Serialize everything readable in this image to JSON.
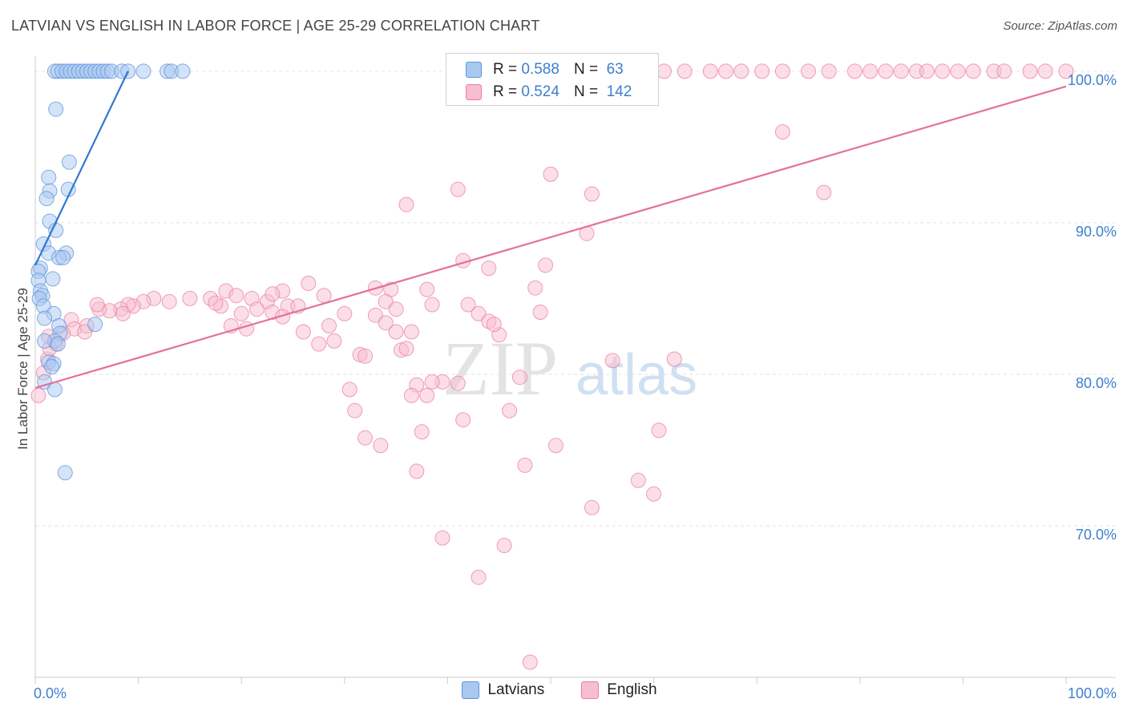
{
  "title": "LATVIAN VS ENGLISH IN LABOR FORCE | AGE 25-29 CORRELATION CHART",
  "source": "Source: ZipAtlas.com",
  "watermark": {
    "zip": "ZIP",
    "atlas": "atlas"
  },
  "legend": {
    "rows": [
      {
        "r_label": "R =",
        "r_value": "0.588",
        "n_label": "N =",
        "n_value": "63",
        "color": "#a9c8f0",
        "border": "#5b93dd"
      },
      {
        "r_label": "R =",
        "r_value": "0.524",
        "n_label": "N =",
        "n_value": "142",
        "color": "#f7bdd0",
        "border": "#e97fa5"
      }
    ]
  },
  "bottom_legend": [
    {
      "label": "Latvians",
      "color": "#a9c8f0",
      "border": "#5b93dd"
    },
    {
      "label": "English",
      "color": "#f7bdd0",
      "border": "#e97fa5"
    }
  ],
  "chart_data": {
    "type": "scatter",
    "xlabel": "",
    "ylabel": "In Labor Force | Age 25-29",
    "xlim": [
      0,
      100
    ],
    "ylim": [
      60,
      101
    ],
    "x_tick_labels": [
      "0.0%",
      "100.0%"
    ],
    "y_ticks": [
      {
        "value": 70,
        "label": "70.0%"
      },
      {
        "value": 80,
        "label": "80.0%"
      },
      {
        "value": 90,
        "label": "90.0%"
      },
      {
        "value": 100,
        "label": "100.0%"
      }
    ],
    "grid": true,
    "series": [
      {
        "name": "Latvians",
        "color": "#5b93dd",
        "fill": "#a9c8f0",
        "trendline": {
          "x": [
            0,
            9
          ],
          "y": [
            87.2,
            100
          ]
        },
        "points": [
          [
            1.9,
            100
          ],
          [
            2.2,
            100
          ],
          [
            2.6,
            100
          ],
          [
            3.0,
            100
          ],
          [
            3.4,
            100
          ],
          [
            3.8,
            100
          ],
          [
            4.2,
            100
          ],
          [
            4.6,
            100
          ],
          [
            5.0,
            100
          ],
          [
            5.4,
            100
          ],
          [
            5.8,
            100
          ],
          [
            6.2,
            100
          ],
          [
            6.6,
            100
          ],
          [
            7.0,
            100
          ],
          [
            7.4,
            100
          ],
          [
            8.4,
            100
          ],
          [
            9.0,
            100
          ],
          [
            10.5,
            100
          ],
          [
            12.8,
            100
          ],
          [
            13.2,
            100
          ],
          [
            14.3,
            100
          ],
          [
            2.0,
            97.5
          ],
          [
            3.3,
            94.0
          ],
          [
            1.3,
            93.0
          ],
          [
            3.2,
            92.2
          ],
          [
            1.4,
            92.1
          ],
          [
            1.1,
            91.6
          ],
          [
            1.4,
            90.1
          ],
          [
            2.0,
            89.5
          ],
          [
            0.8,
            88.6
          ],
          [
            1.3,
            88.0
          ],
          [
            3.0,
            88.0
          ],
          [
            2.3,
            87.7
          ],
          [
            2.7,
            87.7
          ],
          [
            0.5,
            87.0
          ],
          [
            0.3,
            86.8
          ],
          [
            1.7,
            86.3
          ],
          [
            0.3,
            86.2
          ],
          [
            0.5,
            85.5
          ],
          [
            0.7,
            85.2
          ],
          [
            0.4,
            85.0
          ],
          [
            0.8,
            84.5
          ],
          [
            1.8,
            84.0
          ],
          [
            0.9,
            83.7
          ],
          [
            5.8,
            83.3
          ],
          [
            2.3,
            83.2
          ],
          [
            2.4,
            82.7
          ],
          [
            1.9,
            82.2
          ],
          [
            0.9,
            82.2
          ],
          [
            2.2,
            82.0
          ],
          [
            1.3,
            80.8
          ],
          [
            1.8,
            80.7
          ],
          [
            1.6,
            80.5
          ],
          [
            0.9,
            79.5
          ],
          [
            1.9,
            79.0
          ],
          [
            2.9,
            73.5
          ]
        ]
      },
      {
        "name": "English",
        "color": "#e97fa5",
        "fill": "#f7bdd0",
        "trendline": {
          "x": [
            0,
            100
          ],
          "y": [
            79.1,
            99.0
          ]
        },
        "points": [
          [
            48.0,
            100
          ],
          [
            52.0,
            100
          ],
          [
            54.5,
            100
          ],
          [
            57.0,
            100
          ],
          [
            59.5,
            100
          ],
          [
            61.0,
            100
          ],
          [
            63.0,
            100
          ],
          [
            65.5,
            100
          ],
          [
            67.0,
            100
          ],
          [
            68.5,
            100
          ],
          [
            70.5,
            100
          ],
          [
            72.5,
            100
          ],
          [
            75.0,
            100
          ],
          [
            77.0,
            100
          ],
          [
            79.5,
            100
          ],
          [
            81.0,
            100
          ],
          [
            82.5,
            100
          ],
          [
            84.0,
            100
          ],
          [
            85.5,
            100
          ],
          [
            86.5,
            100
          ],
          [
            88.0,
            100
          ],
          [
            89.5,
            100
          ],
          [
            91.0,
            100
          ],
          [
            93.0,
            100
          ],
          [
            94.0,
            100
          ],
          [
            96.5,
            100
          ],
          [
            98.0,
            100
          ],
          [
            100.0,
            100
          ],
          [
            72.5,
            96.0
          ],
          [
            50.0,
            93.2
          ],
          [
            41.0,
            92.2
          ],
          [
            54.0,
            91.9
          ],
          [
            76.5,
            92.0
          ],
          [
            36.0,
            91.2
          ],
          [
            53.5,
            89.3
          ],
          [
            41.5,
            87.5
          ],
          [
            49.5,
            87.2
          ],
          [
            44.0,
            87.0
          ],
          [
            26.5,
            86.0
          ],
          [
            33.0,
            85.7
          ],
          [
            48.5,
            85.7
          ],
          [
            24.0,
            85.5
          ],
          [
            38.0,
            85.6
          ],
          [
            34.5,
            85.6
          ],
          [
            28.0,
            85.2
          ],
          [
            34.0,
            84.8
          ],
          [
            15.0,
            85.0
          ],
          [
            11.5,
            85.0
          ],
          [
            13.0,
            84.8
          ],
          [
            18.0,
            84.5
          ],
          [
            17.0,
            85.0
          ],
          [
            18.5,
            85.5
          ],
          [
            19.5,
            85.2
          ],
          [
            21.0,
            85.0
          ],
          [
            22.5,
            84.8
          ],
          [
            23.0,
            85.3
          ],
          [
            24.5,
            84.5
          ],
          [
            17.5,
            84.7
          ],
          [
            10.5,
            84.8
          ],
          [
            9.5,
            84.5
          ],
          [
            9.0,
            84.6
          ],
          [
            8.3,
            84.3
          ],
          [
            8.5,
            84.0
          ],
          [
            7.2,
            84.2
          ],
          [
            6.2,
            84.3
          ],
          [
            6.0,
            84.6
          ],
          [
            3.5,
            83.6
          ],
          [
            3.8,
            83.0
          ],
          [
            5.0,
            83.2
          ],
          [
            4.8,
            82.8
          ],
          [
            2.7,
            82.7
          ],
          [
            2.0,
            82.0
          ],
          [
            1.3,
            82.5
          ],
          [
            1.2,
            81.0
          ],
          [
            1.4,
            81.7
          ],
          [
            0.8,
            80.1
          ],
          [
            0.3,
            78.6
          ],
          [
            20.0,
            84.0
          ],
          [
            19.0,
            83.2
          ],
          [
            20.5,
            83.0
          ],
          [
            21.5,
            84.3
          ],
          [
            23.0,
            84.1
          ],
          [
            24.0,
            83.8
          ],
          [
            25.5,
            84.5
          ],
          [
            26.0,
            82.8
          ],
          [
            27.5,
            82.0
          ],
          [
            28.5,
            83.2
          ],
          [
            29.0,
            82.2
          ],
          [
            30.0,
            84.0
          ],
          [
            31.5,
            81.3
          ],
          [
            32.0,
            81.2
          ],
          [
            33.0,
            83.9
          ],
          [
            34.0,
            83.4
          ],
          [
            35.0,
            82.8
          ],
          [
            35.5,
            81.6
          ],
          [
            36.5,
            82.8
          ],
          [
            35.0,
            84.3
          ],
          [
            36.0,
            81.7
          ],
          [
            38.5,
            84.6
          ],
          [
            39.5,
            79.5
          ],
          [
            41.0,
            79.4
          ],
          [
            42.0,
            84.6
          ],
          [
            43.0,
            84.0
          ],
          [
            44.0,
            83.5
          ],
          [
            45.0,
            82.6
          ],
          [
            49.0,
            84.1
          ],
          [
            44.5,
            83.3
          ],
          [
            37.0,
            79.3
          ],
          [
            38.0,
            78.6
          ],
          [
            38.5,
            79.5
          ],
          [
            36.5,
            78.6
          ],
          [
            30.5,
            79.0
          ],
          [
            31.0,
            77.6
          ],
          [
            32.0,
            75.8
          ],
          [
            33.5,
            75.3
          ],
          [
            37.5,
            76.2
          ],
          [
            41.5,
            77.0
          ],
          [
            46.0,
            77.6
          ],
          [
            47.0,
            79.8
          ],
          [
            50.5,
            75.3
          ],
          [
            47.5,
            74.0
          ],
          [
            37.0,
            73.6
          ],
          [
            58.5,
            73.0
          ],
          [
            60.0,
            72.1
          ],
          [
            54.0,
            71.2
          ],
          [
            39.5,
            69.2
          ],
          [
            45.5,
            68.7
          ],
          [
            43.0,
            66.6
          ],
          [
            48.0,
            61.0
          ],
          [
            60.5,
            76.3
          ],
          [
            62.0,
            81.0
          ],
          [
            56.0,
            80.9
          ]
        ]
      }
    ]
  }
}
